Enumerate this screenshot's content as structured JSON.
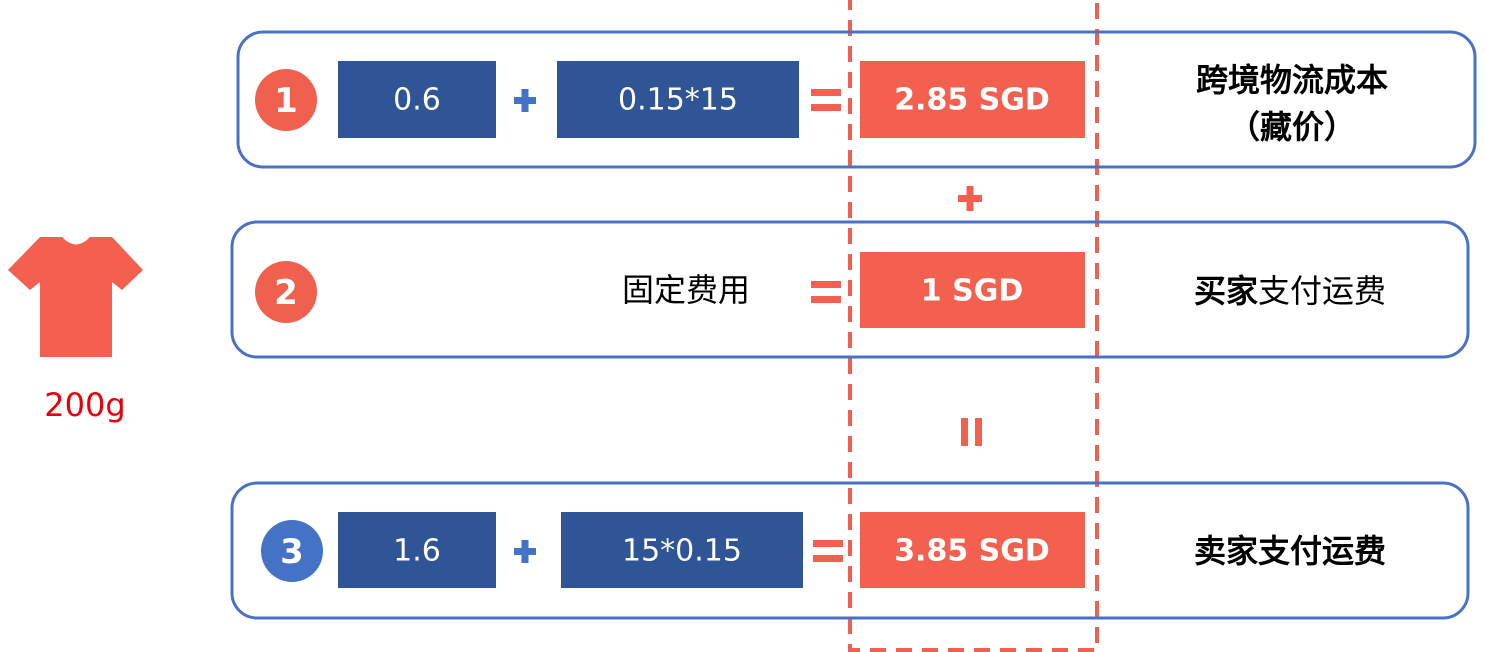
{
  "rows": [
    {
      "number": "1",
      "terms": [
        "0.6",
        "0.15*15"
      ],
      "result": "2.85 SGD",
      "label": [
        "跨境物流成本",
        "（藏价）"
      ]
    },
    {
      "number": "2",
      "description": "固定费用",
      "result": "1 SGD",
      "label": {
        "bold": "买家",
        "regular": "支付运费"
      }
    },
    {
      "number": "3",
      "terms": [
        "1.6",
        "15*0.15"
      ],
      "result": "3.85 SGD",
      "label": "卖家支付运费"
    }
  ],
  "item": {
    "weight": "200g"
  }
}
